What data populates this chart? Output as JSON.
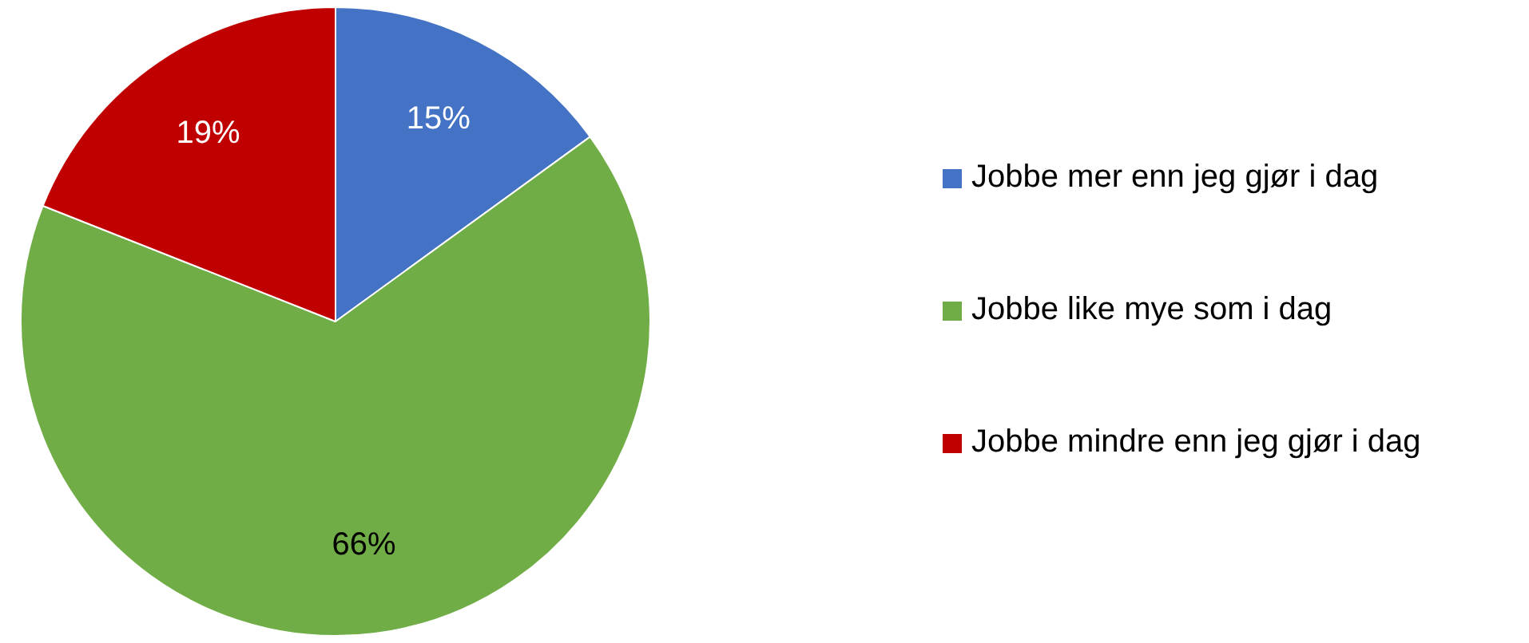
{
  "chart_data": {
    "type": "pie",
    "categories": [
      "Jobbe mer enn jeg gjør i dag",
      "Jobbe like mye som i dag",
      "Jobbe mindre enn jeg gjør i dag"
    ],
    "values": [
      15,
      66,
      19
    ],
    "colors": [
      "#4472c4",
      "#70ad47",
      "#c00000"
    ],
    "value_labels": [
      "15%",
      "66%",
      "19%"
    ],
    "legend": "right"
  }
}
